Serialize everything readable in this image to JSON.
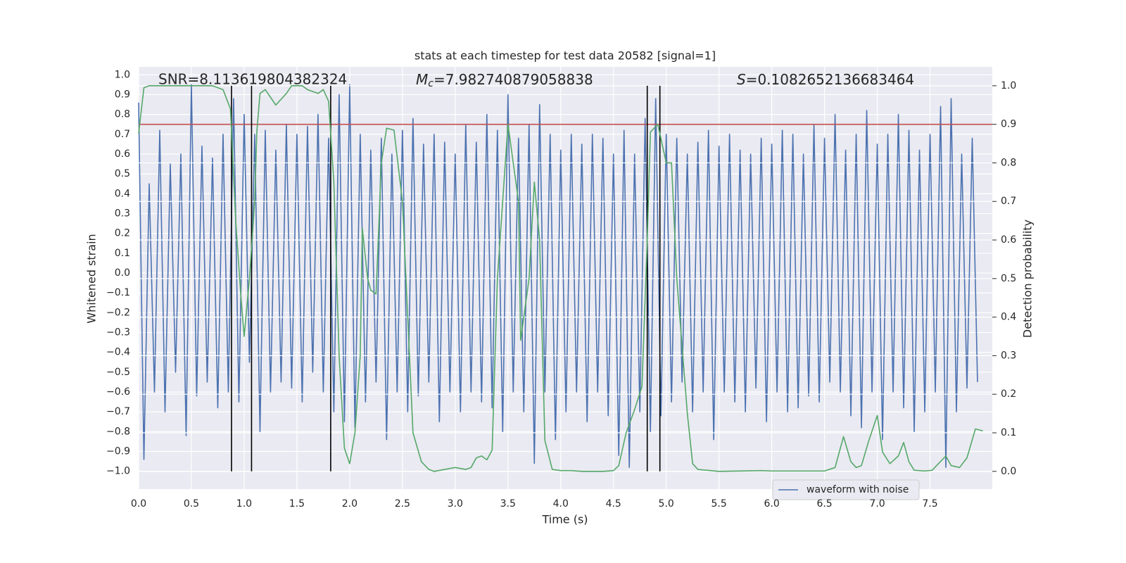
{
  "chart_data": {
    "type": "line",
    "title": "stats at each timestep for test data 20582 [signal=1]",
    "xlabel": "Time (s)",
    "ylabel": "Whitened strain",
    "y2label": "Detection probability",
    "annotations": {
      "snr": "SNR=8.113619804382324",
      "mc": {
        "symbol": "M",
        "subscript": "c",
        "text": "=7.982740879058838"
      },
      "s": {
        "symbol": "S",
        "text": "=0.1082652136683464"
      }
    },
    "xlim": [
      0,
      8.09
    ],
    "ylim": [
      -1.09,
      1.04
    ],
    "y2lim": [
      -0.046,
      1.049
    ],
    "xticks": [
      {
        "value": 0,
        "label": "0.0"
      },
      {
        "value": 0.5,
        "label": "0.5"
      },
      {
        "value": 1,
        "label": "1.0"
      },
      {
        "value": 1.5,
        "label": "1.5"
      },
      {
        "value": 2,
        "label": "2.0"
      },
      {
        "value": 2.5,
        "label": "2.5"
      },
      {
        "value": 3,
        "label": "3.0"
      },
      {
        "value": 3.5,
        "label": "3.5"
      },
      {
        "value": 4,
        "label": "4.0"
      },
      {
        "value": 4.5,
        "label": "4.5"
      },
      {
        "value": 5,
        "label": "5.0"
      },
      {
        "value": 5.5,
        "label": "5.5"
      },
      {
        "value": 6,
        "label": "6.0"
      },
      {
        "value": 6.5,
        "label": "6.5"
      },
      {
        "value": 7,
        "label": "7.0"
      },
      {
        "value": 7.5,
        "label": "7.5"
      }
    ],
    "yticks": [
      {
        "value": -1,
        "label": "−1.0"
      },
      {
        "value": -0.9,
        "label": "−0.9"
      },
      {
        "value": -0.8,
        "label": "−0.8"
      },
      {
        "value": -0.7,
        "label": "−0.7"
      },
      {
        "value": -0.6,
        "label": "−0.6"
      },
      {
        "value": -0.5,
        "label": "−0.5"
      },
      {
        "value": -0.4,
        "label": "−0.4"
      },
      {
        "value": -0.3,
        "label": "−0.3"
      },
      {
        "value": -0.2,
        "label": "−0.2"
      },
      {
        "value": -0.1,
        "label": "−0.1"
      },
      {
        "value": 0,
        "label": "0.0"
      },
      {
        "value": 0.1,
        "label": "0.1"
      },
      {
        "value": 0.2,
        "label": "0.2"
      },
      {
        "value": 0.3,
        "label": "0.3"
      },
      {
        "value": 0.4,
        "label": "0.4"
      },
      {
        "value": 0.5,
        "label": "0.5"
      },
      {
        "value": 0.6,
        "label": "0.6"
      },
      {
        "value": 0.7,
        "label": "0.7"
      },
      {
        "value": 0.8,
        "label": "0.8"
      },
      {
        "value": 0.9,
        "label": "0.9"
      },
      {
        "value": 1,
        "label": "1.0"
      }
    ],
    "y2ticks": [
      {
        "value": 0,
        "label": "0.0"
      },
      {
        "value": 0.1,
        "label": "0.1"
      },
      {
        "value": 0.2,
        "label": "0.2"
      },
      {
        "value": 0.3,
        "label": "0.3"
      },
      {
        "value": 0.4,
        "label": "0.4"
      },
      {
        "value": 0.5,
        "label": "0.5"
      },
      {
        "value": 0.6,
        "label": "0.6"
      },
      {
        "value": 0.7,
        "label": "0.7"
      },
      {
        "value": 0.8,
        "label": "0.8"
      },
      {
        "value": 0.9,
        "label": "0.9"
      },
      {
        "value": 1,
        "label": "1.0"
      }
    ],
    "grid": true,
    "legend": "lower right",
    "series": [
      {
        "name": "waveform with noise",
        "color": "#4c72b0",
        "axis": "y",
        "x": [
          0,
          0.05,
          0.1,
          0.15,
          0.2,
          0.25,
          0.3,
          0.35,
          0.4,
          0.45,
          0.5,
          0.55,
          0.6,
          0.65,
          0.7,
          0.75,
          0.8,
          0.85,
          0.9,
          0.95,
          1,
          1.05,
          1.1,
          1.15,
          1.2,
          1.25,
          1.3,
          1.35,
          1.4,
          1.45,
          1.5,
          1.55,
          1.6,
          1.65,
          1.7,
          1.75,
          1.8,
          1.85,
          1.9,
          1.95,
          2,
          2.05,
          2.1,
          2.15,
          2.2,
          2.25,
          2.3,
          2.35,
          2.4,
          2.45,
          2.5,
          2.55,
          2.6,
          2.65,
          2.7,
          2.75,
          2.8,
          2.85,
          2.9,
          2.95,
          3,
          3.05,
          3.1,
          3.15,
          3.2,
          3.25,
          3.3,
          3.35,
          3.4,
          3.45,
          3.5,
          3.55,
          3.6,
          3.65,
          3.7,
          3.75,
          3.8,
          3.85,
          3.9,
          3.95,
          4,
          4.05,
          4.1,
          4.15,
          4.2,
          4.25,
          4.3,
          4.35,
          4.4,
          4.45,
          4.5,
          4.55,
          4.6,
          4.65,
          4.7,
          4.75,
          4.8,
          4.85,
          4.9,
          4.95,
          5,
          5.05,
          5.1,
          5.15,
          5.2,
          5.25,
          5.3,
          5.35,
          5.4,
          5.45,
          5.5,
          5.55,
          5.6,
          5.65,
          5.7,
          5.75,
          5.8,
          5.85,
          5.9,
          5.95,
          6,
          6.05,
          6.1,
          6.15,
          6.2,
          6.25,
          6.3,
          6.35,
          6.4,
          6.45,
          6.5,
          6.55,
          6.6,
          6.65,
          6.7,
          6.75,
          6.8,
          6.85,
          6.9,
          6.95,
          7,
          7.05,
          7.1,
          7.15,
          7.2,
          7.25,
          7.3,
          7.35,
          7.4,
          7.45,
          7.5,
          7.55,
          7.6,
          7.65,
          7.7,
          7.75,
          7.8,
          7.85,
          7.9,
          7.95
        ],
        "values": [
          0.86,
          -0.94,
          0.45,
          -0.6,
          0.72,
          -0.7,
          0.55,
          -0.5,
          0.6,
          -0.82,
          0.95,
          -0.62,
          0.64,
          -0.55,
          0.58,
          -0.68,
          0.7,
          -0.6,
          0.88,
          -0.65,
          0.8,
          -0.45,
          0.7,
          -0.8,
          0.72,
          -0.6,
          0.62,
          -0.55,
          0.75,
          -0.58,
          0.7,
          -0.65,
          0.74,
          -0.5,
          0.8,
          -0.6,
          0.68,
          -0.7,
          0.9,
          -0.75,
          0.95,
          -0.78,
          0.7,
          -0.65,
          0.62,
          -0.55,
          0.68,
          -0.84,
          0.6,
          -0.6,
          0.72,
          -0.7,
          0.78,
          -0.62,
          0.65,
          -0.55,
          0.7,
          -0.75,
          0.66,
          -0.6,
          0.6,
          -0.7,
          0.75,
          -0.6,
          0.66,
          -0.65,
          0.8,
          -0.68,
          0.72,
          -0.8,
          0.9,
          -0.6,
          0.68,
          -0.7,
          0.75,
          -0.96,
          0.85,
          -0.6,
          0.7,
          -0.84,
          0.62,
          -0.7,
          0.7,
          -0.6,
          0.65,
          -0.75,
          0.7,
          -0.6,
          0.68,
          -0.72,
          0.6,
          -0.92,
          0.72,
          -0.98,
          0.6,
          -0.7,
          0.78,
          -0.8,
          0.88,
          -0.72,
          0.7,
          -0.65,
          0.68,
          -0.55,
          0.6,
          -0.7,
          0.66,
          -0.6,
          0.72,
          -0.84,
          0.64,
          -0.6,
          0.7,
          -0.65,
          0.62,
          -0.7,
          0.6,
          -0.58,
          0.68,
          -0.75,
          0.65,
          -0.6,
          0.72,
          -0.7,
          0.7,
          -0.68,
          0.6,
          -0.62,
          0.75,
          -0.65,
          0.68,
          -0.55,
          0.8,
          -0.6,
          0.62,
          -0.72,
          0.7,
          -0.78,
          0.82,
          -0.6,
          0.65,
          -0.84,
          0.7,
          -0.6,
          0.8,
          -0.68,
          0.72,
          -0.8,
          0.62,
          -0.7,
          0.7,
          -0.6,
          0.84,
          -0.98,
          0.88,
          -0.7,
          0.6,
          -0.58,
          0.68,
          -0.55
        ]
      },
      {
        "color": "#55a868",
        "axis": "y2",
        "x": [
          0,
          0.05,
          0.1,
          0.7,
          0.8,
          0.87,
          0.92,
          0.97,
          1,
          1.05,
          1.1,
          1.12,
          1.15,
          1.2,
          1.3,
          1.4,
          1.45,
          1.55,
          1.6,
          1.7,
          1.75,
          1.8,
          1.85,
          1.9,
          1.95,
          2,
          2.05,
          2.1,
          2.12,
          2.17,
          2.2,
          2.25,
          2.3,
          2.35,
          2.42,
          2.5,
          2.6,
          2.68,
          2.75,
          2.8,
          2.9,
          3,
          3.1,
          3.15,
          3.2,
          3.25,
          3.3,
          3.35,
          3.4,
          3.5,
          3.6,
          3.62,
          3.7,
          3.75,
          3.8,
          3.85,
          3.92,
          4,
          4.1,
          4.2,
          4.4,
          4.5,
          4.55,
          4.62,
          4.7,
          4.77,
          4.82,
          4.85,
          4.92,
          5,
          5.05,
          5.1,
          5.2,
          5.25,
          5.3,
          5.5,
          5.9,
          6,
          6.5,
          6.6,
          6.68,
          6.75,
          6.8,
          6.85,
          6.92,
          7,
          7.05,
          7.12,
          7.2,
          7.25,
          7.3,
          7.35,
          7.45,
          7.52,
          7.58,
          7.65,
          7.7,
          7.78,
          7.85,
          7.93,
          8
        ],
        "values": [
          0.876,
          0.995,
          1,
          1,
          0.99,
          0.94,
          0.65,
          0.45,
          0.35,
          0.5,
          0.7,
          0.88,
          0.98,
          0.99,
          0.95,
          0.98,
          1,
          1,
          0.99,
          0.98,
          0.99,
          0.96,
          0.75,
          0.3,
          0.06,
          0.02,
          0.1,
          0.3,
          0.63,
          0.5,
          0.47,
          0.46,
          0.8,
          0.89,
          0.885,
          0.7,
          0.1,
          0.025,
          0.005,
          0,
          0.005,
          0.01,
          0.005,
          0.01,
          0.035,
          0.04,
          0.03,
          0.055,
          0.5,
          0.9,
          0.7,
          0.34,
          0.5,
          0.75,
          0.6,
          0.08,
          0.005,
          0.002,
          0.002,
          0,
          0,
          0.002,
          0.015,
          0.1,
          0.16,
          0.22,
          0.6,
          0.88,
          0.9,
          0.8,
          0.8,
          0.5,
          0.15,
          0.02,
          0.005,
          0,
          0.002,
          0.001,
          0.001,
          0.01,
          0.09,
          0.025,
          0.01,
          0.015,
          0.08,
          0.145,
          0.05,
          0.02,
          0.04,
          0.075,
          0.025,
          0.003,
          0.001,
          0.003,
          0.02,
          0.04,
          0.015,
          0.01,
          0.035,
          0.11,
          0.105
        ]
      }
    ],
    "hline": {
      "y2": 0.9,
      "color": "#c44e52"
    },
    "vlines": {
      "x": [
        0.88,
        1.07,
        1.82,
        4.82,
        4.94
      ],
      "y2min": 0,
      "y2max": 1,
      "color": "#000000"
    }
  }
}
